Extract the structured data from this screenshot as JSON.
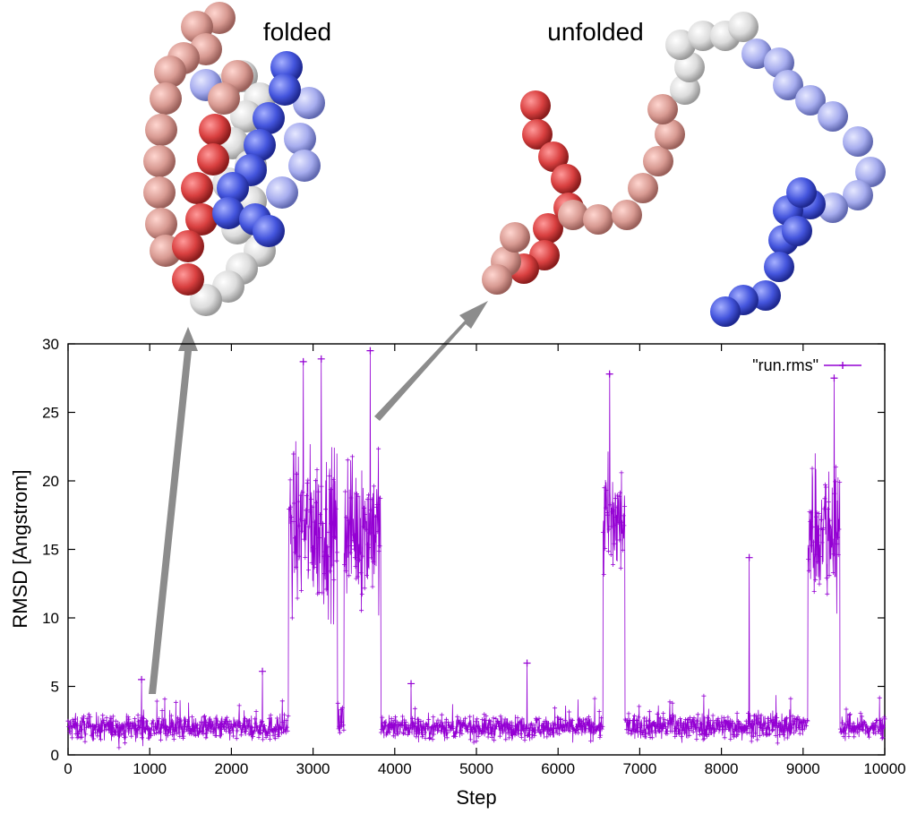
{
  "annotations": {
    "folded": "folded",
    "unfolded": "unfolded"
  },
  "colors": {
    "series": "#9400d3",
    "arrow": "#8c8c8c",
    "bead_red": "#d94040",
    "bead_blue": "#4455dd",
    "bead_white": "#e8e8e8"
  },
  "chart_data": {
    "type": "line",
    "title": "",
    "xlabel": "Step",
    "ylabel": "RMSD [Angstrom]",
    "xlim": [
      0,
      10000
    ],
    "ylim": [
      0,
      30
    ],
    "xticks": [
      "0",
      "1000",
      "2000",
      "3000",
      "4000",
      "5000",
      "6000",
      "7000",
      "8000",
      "9000",
      "10000"
    ],
    "yticks": [
      "0",
      "5",
      "10",
      "15",
      "20",
      "25",
      "30"
    ],
    "grid": false,
    "legend_position": "top-right",
    "series": [
      {
        "name": "\"run.rms\"",
        "style": "lines with point markers",
        "segments": [
          {
            "x_start": 0,
            "x_end": 2700,
            "state": "folded",
            "mean": 2.0,
            "spread": 1.0
          },
          {
            "x_start": 2700,
            "x_end": 3300,
            "state": "unfolded",
            "mean": 16.5,
            "spread": 6.0
          },
          {
            "x_start": 3300,
            "x_end": 3380,
            "state": "folded",
            "mean": 2.5,
            "spread": 1.5
          },
          {
            "x_start": 3380,
            "x_end": 3830,
            "state": "unfolded",
            "mean": 16.5,
            "spread": 5.5
          },
          {
            "x_start": 3830,
            "x_end": 6550,
            "state": "folded",
            "mean": 2.0,
            "spread": 0.9
          },
          {
            "x_start": 6550,
            "x_end": 6820,
            "state": "unfolded",
            "mean": 17.0,
            "spread": 5.0
          },
          {
            "x_start": 6820,
            "x_end": 9060,
            "state": "folded",
            "mean": 2.1,
            "spread": 1.0
          },
          {
            "x_start": 9060,
            "x_end": 9450,
            "state": "unfolded",
            "mean": 16.5,
            "spread": 5.5
          },
          {
            "x_start": 9450,
            "x_end": 10000,
            "state": "folded",
            "mean": 2.0,
            "spread": 1.0
          }
        ],
        "spikes": [
          {
            "x": 900,
            "y": 5.5
          },
          {
            "x": 2380,
            "y": 6.1
          },
          {
            "x": 2880,
            "y": 28.7
          },
          {
            "x": 3100,
            "y": 28.9
          },
          {
            "x": 3700,
            "y": 29.5
          },
          {
            "x": 4200,
            "y": 5.2
          },
          {
            "x": 5620,
            "y": 6.7
          },
          {
            "x": 6630,
            "y": 27.8
          },
          {
            "x": 8340,
            "y": 14.4
          },
          {
            "x": 9380,
            "y": 27.5
          }
        ]
      }
    ]
  }
}
